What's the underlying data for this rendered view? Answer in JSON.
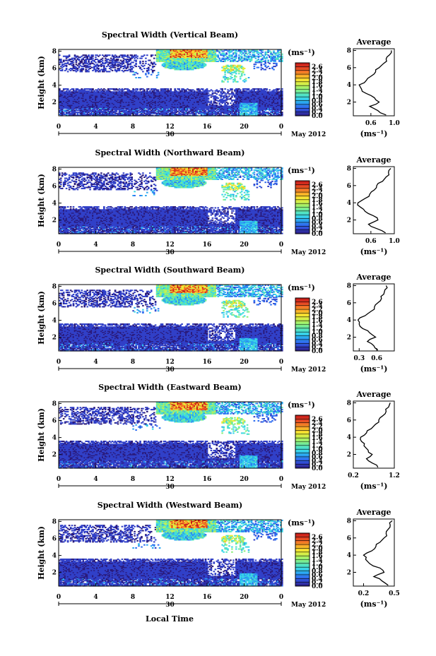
{
  "colorbar": {
    "unit": "(ms⁻¹)",
    "ticks": [
      "2.6",
      "2.4",
      "2.2",
      "2.0",
      "1.8",
      "1.6",
      "1.4",
      "1.2",
      "1.0",
      "0.8",
      "0.6",
      "0.4",
      "0.2",
      "0.0"
    ],
    "stops": [
      "#2a1a7a",
      "#3140c8",
      "#2f6ef0",
      "#2aa6f0",
      "#3ad8e6",
      "#5ae6b6",
      "#8cef7a",
      "#c8f050",
      "#f4e832",
      "#f8b228",
      "#f27426",
      "#e03a22",
      "#c01818"
    ]
  },
  "x_ticks": [
    "0",
    "4",
    "8",
    "12",
    "16",
    "20",
    "0"
  ],
  "date_marker": "30",
  "month_label": "May 2012",
  "xlabel": "Local Time",
  "ylabel": "Height (km)",
  "y_ticks": [
    "2",
    "4",
    "6",
    "8"
  ],
  "avg_title": "Average",
  "avg_unit": "(ms⁻¹)",
  "chart_data": [
    {
      "type": "heatmap",
      "title": "Spectral Width (Vertical Beam)",
      "xlim": [
        0,
        24
      ],
      "ylim": [
        0.4,
        8.2
      ],
      "zlim": [
        0,
        2.8
      ],
      "profile": {
        "type": "line",
        "xlim": [
          0.3,
          1.0
        ],
        "x_ticks": [
          "0.6",
          "1.0"
        ],
        "x_tick_values": [
          0.6,
          1.0
        ],
        "height": [
          0.5,
          1.0,
          1.5,
          2.0,
          2.5,
          3.0,
          3.5,
          4.0,
          4.5,
          5.0,
          5.5,
          6.0,
          6.5,
          7.0,
          7.5,
          8.0
        ],
        "value": [
          0.86,
          0.72,
          0.58,
          0.74,
          0.66,
          0.52,
          0.44,
          0.4,
          0.52,
          0.6,
          0.68,
          0.74,
          0.82,
          0.86,
          0.92,
          0.95
        ]
      }
    },
    {
      "type": "heatmap",
      "title": "Spectral Width (Northward Beam)",
      "xlim": [
        0,
        24
      ],
      "ylim": [
        0.4,
        8.2
      ],
      "zlim": [
        0,
        2.8
      ],
      "profile": {
        "type": "line",
        "xlim": [
          0.3,
          1.0
        ],
        "x_ticks": [
          "0.6",
          "1.0"
        ],
        "x_tick_values": [
          0.6,
          1.0
        ],
        "height": [
          0.5,
          1.0,
          1.5,
          2.0,
          2.5,
          3.0,
          3.5,
          4.0,
          4.5,
          5.0,
          5.5,
          6.0,
          6.5,
          7.0,
          7.5,
          8.0
        ],
        "value": [
          0.85,
          0.7,
          0.56,
          0.72,
          0.64,
          0.5,
          0.42,
          0.38,
          0.5,
          0.58,
          0.66,
          0.7,
          0.8,
          0.86,
          0.9,
          0.94
        ]
      }
    },
    {
      "type": "heatmap",
      "title": "Spectral Width (Southward Beam)",
      "xlim": [
        0,
        24
      ],
      "ylim": [
        0.4,
        8.2
      ],
      "zlim": [
        0,
        2.8
      ],
      "profile": {
        "type": "line",
        "xlim": [
          0.2,
          0.9
        ],
        "x_ticks": [
          "0.3",
          "0.6"
        ],
        "x_tick_values": [
          0.3,
          0.6
        ],
        "height": [
          0.5,
          1.0,
          1.5,
          2.0,
          2.5,
          3.0,
          3.5,
          4.0,
          4.5,
          5.0,
          5.5,
          6.0,
          6.5,
          7.0,
          7.5,
          8.0
        ],
        "value": [
          0.62,
          0.55,
          0.44,
          0.58,
          0.48,
          0.36,
          0.3,
          0.28,
          0.4,
          0.5,
          0.56,
          0.62,
          0.68,
          0.72,
          0.74,
          0.76
        ]
      }
    },
    {
      "type": "heatmap",
      "title": "Spectral Width (Eastward Beam)",
      "xlim": [
        0,
        24
      ],
      "ylim": [
        0.4,
        8.2
      ],
      "zlim": [
        0,
        2.8
      ],
      "profile": {
        "type": "line",
        "xlim": [
          0.2,
          1.2
        ],
        "x_ticks": [
          "0.2",
          "1.2"
        ],
        "x_tick_values": [
          0.2,
          1.2
        ],
        "height": [
          0.5,
          1.0,
          1.5,
          2.0,
          2.5,
          3.0,
          3.5,
          4.0,
          4.5,
          5.0,
          5.5,
          6.0,
          6.5,
          7.0,
          7.5,
          8.0
        ],
        "value": [
          0.8,
          0.66,
          0.52,
          0.66,
          0.56,
          0.46,
          0.4,
          0.38,
          0.52,
          0.64,
          0.74,
          0.82,
          0.92,
          1.0,
          1.06,
          1.1
        ]
      }
    },
    {
      "type": "heatmap",
      "title": "Spectral Width (Westward Beam)",
      "xlim": [
        0,
        24
      ],
      "ylim": [
        0.4,
        8.2
      ],
      "zlim": [
        0,
        2.8
      ],
      "profile": {
        "type": "line",
        "xlim": [
          0.1,
          0.5
        ],
        "x_ticks": [
          "0.2",
          "0.5"
        ],
        "x_tick_values": [
          0.2,
          0.5
        ],
        "height": [
          0.5,
          1.0,
          1.5,
          2.0,
          2.5,
          3.0,
          3.5,
          4.0,
          4.5,
          5.0,
          5.5,
          6.0,
          6.5,
          7.0,
          7.5,
          8.0
        ],
        "value": [
          0.44,
          0.38,
          0.3,
          0.4,
          0.36,
          0.26,
          0.22,
          0.2,
          0.28,
          0.32,
          0.36,
          0.4,
          0.42,
          0.44,
          0.46,
          0.48
        ]
      }
    }
  ]
}
